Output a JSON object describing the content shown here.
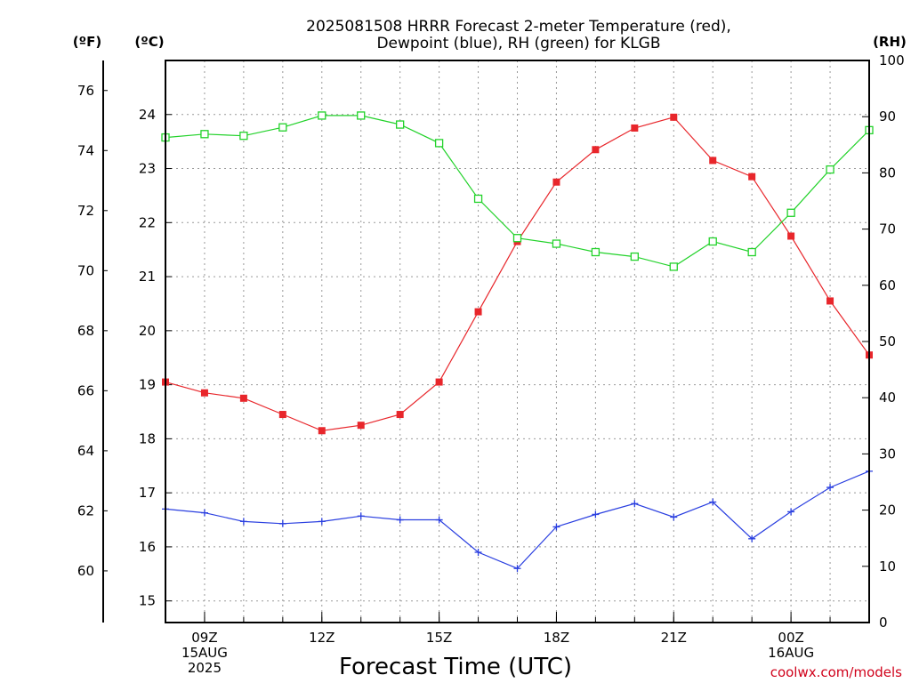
{
  "chart_data": {
    "type": "line",
    "title_line1": "2025081508 HRRR Forecast 2-meter Temperature (red),",
    "title_line2": "Dewpoint (blue), RH (green) for KLGB",
    "xlabel": "Forecast Time (UTC)",
    "credit": "coolwx.com/models",
    "units": {
      "f": "(ºF)",
      "c": "(ºC)",
      "rh": "(RH)"
    },
    "x": [
      "08Z",
      "09Z",
      "10Z",
      "11Z",
      "12Z",
      "13Z",
      "14Z",
      "15Z",
      "16Z",
      "17Z",
      "18Z",
      "19Z",
      "20Z",
      "21Z",
      "22Z",
      "23Z",
      "00Z",
      "01Z",
      "02Z"
    ],
    "x_ticks": [
      {
        "index": 1,
        "lines": [
          "09Z",
          "15AUG",
          "2025"
        ]
      },
      {
        "index": 4,
        "lines": [
          "12Z"
        ]
      },
      {
        "index": 7,
        "lines": [
          "15Z"
        ]
      },
      {
        "index": 10,
        "lines": [
          "18Z"
        ]
      },
      {
        "index": 13,
        "lines": [
          "21Z"
        ]
      },
      {
        "index": 16,
        "lines": [
          "00Z",
          "16AUG"
        ]
      }
    ],
    "ylim_c": [
      14.6,
      25.0
    ],
    "ylim_f": [
      58.28,
      77.0
    ],
    "ylim_rh": [
      0,
      100
    ],
    "yticks_c": [
      15,
      16,
      17,
      18,
      19,
      20,
      21,
      22,
      23,
      24
    ],
    "yticks_f": [
      60,
      62,
      64,
      66,
      68,
      70,
      72,
      74,
      76
    ],
    "yticks_rh": [
      0,
      10,
      20,
      30,
      40,
      50,
      60,
      70,
      80,
      90,
      100
    ],
    "grid": true,
    "series": [
      {
        "name": "Temperature",
        "axis": "c",
        "color": "#e8262b",
        "marker": "filled-square",
        "values": [
          19.05,
          18.85,
          18.75,
          18.45,
          18.15,
          18.25,
          18.45,
          19.05,
          20.35,
          21.65,
          22.75,
          23.35,
          23.75,
          23.95,
          23.15,
          22.85,
          21.75,
          20.55,
          19.55
        ]
      },
      {
        "name": "Dewpoint",
        "axis": "c",
        "color": "#2a3fe0",
        "marker": "plus",
        "values": [
          16.7,
          16.63,
          16.47,
          16.43,
          16.47,
          16.57,
          16.5,
          16.5,
          15.9,
          15.6,
          16.37,
          16.6,
          16.8,
          16.55,
          16.83,
          16.15,
          16.65,
          17.1,
          17.4
        ]
      },
      {
        "name": "RH",
        "axis": "rh",
        "color": "#22d22a",
        "marker": "open-square",
        "values": [
          86.3,
          86.9,
          86.6,
          88.1,
          90.2,
          90.2,
          88.6,
          85.3,
          75.4,
          68.4,
          67.4,
          65.9,
          65.1,
          63.3,
          67.8,
          65.9,
          72.9,
          80.6,
          87.6
        ]
      }
    ]
  }
}
